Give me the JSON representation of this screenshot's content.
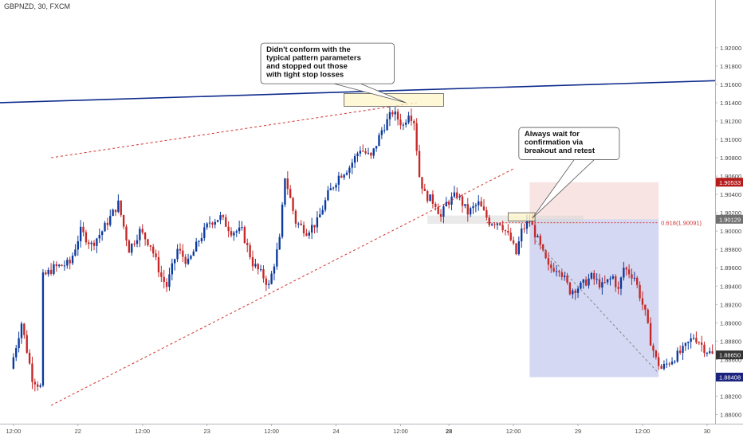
{
  "header": {
    "symbol_title": "GBPNZD, 30, FXCM"
  },
  "chart_data": {
    "type": "candlestick",
    "symbol": "GBPNZD",
    "timeframe": "30",
    "source": "FXCM",
    "ylim": [
      1.879,
      1.9252
    ],
    "y_ticks": [
      "1.92000",
      "1.91800",
      "1.91600",
      "1.91400",
      "1.91200",
      "1.91000",
      "1.90800",
      "1.90600",
      "1.90400",
      "1.90200",
      "1.90000",
      "1.89800",
      "1.89600",
      "1.89400",
      "1.89200",
      "1.89000",
      "1.88800",
      "1.88600",
      "1.88400",
      "1.88200",
      "1.88000"
    ],
    "x_ticks": [
      {
        "label": "12:00",
        "bar": 0,
        "bold": false
      },
      {
        "label": "22",
        "bar": 24,
        "bold": false
      },
      {
        "label": "12:00",
        "bar": 48,
        "bold": false
      },
      {
        "label": "23",
        "bar": 72,
        "bold": false
      },
      {
        "label": "12:00",
        "bar": 96,
        "bold": false
      },
      {
        "label": "24",
        "bar": 120,
        "bold": false
      },
      {
        "label": "12:00",
        "bar": 144,
        "bold": false
      },
      {
        "label": "28",
        "bar": 162,
        "bold": true
      },
      {
        "label": "12:00",
        "bar": 186,
        "bold": false
      },
      {
        "label": "29",
        "bar": 210,
        "bold": false
      },
      {
        "label": "12:00",
        "bar": 234,
        "bold": false
      },
      {
        "label": "30",
        "bar": 258,
        "bold": false
      }
    ],
    "x_bar_range": [
      -5,
      261
    ],
    "anchors": [
      [
        0,
        1.885
      ],
      [
        4,
        1.89
      ],
      [
        8,
        1.884
      ],
      [
        11,
        1.883
      ],
      [
        12,
        1.895
      ],
      [
        16,
        1.896
      ],
      [
        22,
        1.8965
      ],
      [
        26,
        1.9
      ],
      [
        30,
        1.8985
      ],
      [
        34,
        1.9
      ],
      [
        40,
        1.903
      ],
      [
        44,
        1.898
      ],
      [
        48,
        1.9
      ],
      [
        52,
        1.8985
      ],
      [
        56,
        1.895
      ],
      [
        58,
        1.894
      ],
      [
        62,
        1.898
      ],
      [
        66,
        1.8965
      ],
      [
        70,
        1.899
      ],
      [
        74,
        1.901
      ],
      [
        78,
        1.9015
      ],
      [
        82,
        1.9
      ],
      [
        86,
        1.9
      ],
      [
        90,
        1.8965
      ],
      [
        94,
        1.895
      ],
      [
        96,
        1.894
      ],
      [
        100,
        1.899
      ],
      [
        102,
        1.906
      ],
      [
        106,
        1.901
      ],
      [
        110,
        1.9
      ],
      [
        114,
        1.901
      ],
      [
        118,
        1.904
      ],
      [
        122,
        1.906
      ],
      [
        126,
        1.907
      ],
      [
        130,
        1.909
      ],
      [
        134,
        1.908
      ],
      [
        138,
        1.911
      ],
      [
        142,
        1.913
      ],
      [
        146,
        1.9115
      ],
      [
        148,
        1.913
      ],
      [
        150,
        1.912
      ],
      [
        152,
        1.906
      ],
      [
        154,
        1.904
      ],
      [
        158,
        1.903
      ],
      [
        160,
        1.9015
      ],
      [
        162,
        1.903
      ],
      [
        166,
        1.904
      ],
      [
        170,
        1.902
      ],
      [
        174,
        1.903
      ],
      [
        178,
        1.901
      ],
      [
        182,
        1.901
      ],
      [
        186,
        1.899
      ],
      [
        188,
        1.8975
      ],
      [
        190,
        1.9
      ],
      [
        193,
        1.9012
      ],
      [
        196,
        1.899
      ],
      [
        200,
        1.896
      ],
      [
        204,
        1.896
      ],
      [
        208,
        1.8935
      ],
      [
        212,
        1.894
      ],
      [
        216,
        1.895
      ],
      [
        220,
        1.894
      ],
      [
        224,
        1.895
      ],
      [
        226,
        1.8935
      ],
      [
        228,
        1.896
      ],
      [
        232,
        1.895
      ],
      [
        236,
        1.891
      ],
      [
        238,
        1.888
      ],
      [
        240,
        1.886
      ],
      [
        242,
        1.885
      ],
      [
        246,
        1.886
      ],
      [
        250,
        1.887
      ],
      [
        254,
        1.8885
      ],
      [
        256,
        1.888
      ],
      [
        258,
        1.8872
      ],
      [
        261,
        1.8865
      ]
    ],
    "level_labels": [
      {
        "value": 1.90533,
        "text": "1.90533",
        "color": "#b71c1c"
      },
      {
        "value": 1.90129,
        "text": "1.90129",
        "color": "#707070"
      },
      {
        "value": 1.8865,
        "text": "1.88650",
        "color": "#333333"
      },
      {
        "value": 1.88408,
        "text": "1.88408",
        "color": "#1a237e"
      }
    ],
    "fib_label": {
      "value": 1.90091,
      "text": "0.618(1.90091)"
    },
    "trendlines": [
      {
        "name": "resistance",
        "color": "#0d2b8c",
        "style": "solid",
        "points": [
          [
            -5,
            1.914
          ],
          [
            261,
            1.9164
          ]
        ]
      },
      {
        "name": "channel-upper",
        "color": "#d32f2f",
        "style": "dashed",
        "points": [
          [
            14,
            1.908
          ],
          [
            150,
            1.914
          ]
        ]
      },
      {
        "name": "channel-lower",
        "color": "#d32f2f",
        "style": "dashed",
        "points": [
          [
            14,
            1.881
          ],
          [
            186,
            1.9068
          ]
        ]
      },
      {
        "name": "target-path",
        "color": "#888888",
        "style": "dashed",
        "points": [
          [
            194,
            1.899
          ],
          [
            240,
            1.8845
          ]
        ]
      }
    ],
    "zones": [
      {
        "name": "stop-loss-zone",
        "fill": "#f4d4d0",
        "opacity": 0.6,
        "bar_from": 192,
        "bar_to": 240,
        "top": 1.90533,
        "bottom": 1.90129
      },
      {
        "name": "take-profit-zone",
        "fill": "#9fa8e2",
        "opacity": 0.45,
        "bar_from": 192,
        "bar_to": 240,
        "top": 1.90129,
        "bottom": 1.88408
      },
      {
        "name": "retest-zone",
        "fill": "#d6d6d6",
        "opacity": 0.5,
        "bar_from": 154,
        "bar_to": 212,
        "top": 1.9017,
        "bottom": 1.9008
      }
    ],
    "annotations": [
      {
        "name": "pattern-note",
        "lines": [
          "Didn't conform with the",
          "typical pattern parameters",
          "and stopped out those",
          "with tight stop losses"
        ],
        "box": {
          "bar": 92,
          "value": 1.9205
        },
        "pointer": [
          146,
          1.914
        ],
        "highlight": {
          "bar_from": 123,
          "bar_to": 160,
          "top": 1.915,
          "bottom": 1.9136
        }
      },
      {
        "name": "confirmation-note",
        "lines": [
          "Always wait for",
          "confirmation via",
          "breakout and retest"
        ],
        "box": {
          "bar": 188,
          "value": 1.9113
        },
        "pointer": [
          193,
          1.9014
        ],
        "highlight": {
          "bar_from": 184,
          "bar_to": 194,
          "top": 1.902,
          "bottom": 1.9011
        }
      }
    ]
  }
}
